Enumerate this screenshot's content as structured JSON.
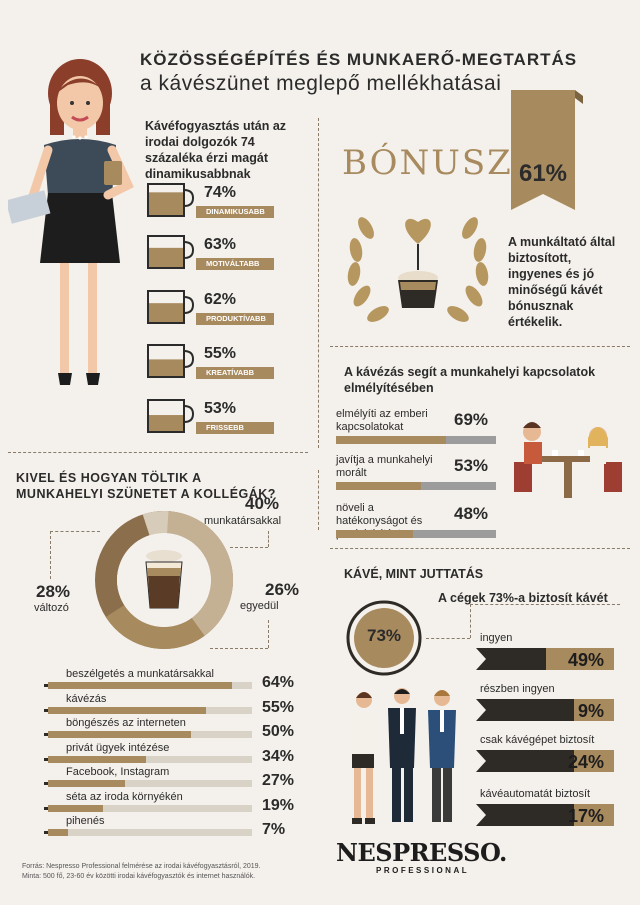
{
  "header": {
    "title": "KÖZÖSSÉGÉPÍTÉS ÉS MUNKAERŐ-MEGTARTÁS",
    "subtitle": "a kávészünet meglepő mellékhatásai"
  },
  "dynamic_section": {
    "heading": "Kávéfogyasztás után az irodai dolgozók 74 százaléka érzi magát dinamikusabbnak",
    "items": [
      {
        "value": "74%",
        "label": "DINAMIKUSABB",
        "fill": 0.74
      },
      {
        "value": "63%",
        "label": "MOTIVÁLTABB",
        "fill": 0.63
      },
      {
        "value": "62%",
        "label": "PRODUKTÍVABB",
        "fill": 0.62
      },
      {
        "value": "55%",
        "label": "KREATÍVABB",
        "fill": 0.55
      },
      {
        "value": "53%",
        "label": "FRISSEBB",
        "fill": 0.53
      }
    ]
  },
  "bonus": {
    "word": "BÓNUSZ",
    "ribbon_value": "61%",
    "text": "A munkáltató által biztosított, ingyenes és jó minőségű kávét bónusznak értékelik."
  },
  "relations": {
    "heading": "A kávézás segít a munkahelyi kapcsolatok elmélyítésében",
    "items": [
      {
        "label": "elmélyíti az emberi kapcsolatokat",
        "value": "69%",
        "fill": 0.69
      },
      {
        "label": "javítja a munkahelyi morált",
        "value": "53%",
        "fill": 0.53
      },
      {
        "label": "növeli a hatékonyságot és produktivitást",
        "value": "48%",
        "fill": 0.48
      }
    ]
  },
  "break_section": {
    "heading": "KIVEL  ÉS HOGYAN TÖLTIK A MUNKAHELYI SZÜNETET A KOLLÉGÁK?",
    "donut": [
      {
        "value": "40%",
        "label": "munkatársakkal"
      },
      {
        "value": "26%",
        "label": "egyedül"
      },
      {
        "value": "28%",
        "label": "változó"
      }
    ],
    "activities": [
      {
        "label": "beszélgetés a munkatársakkal",
        "value": "64%",
        "fill": 0.64
      },
      {
        "label": "kávézás",
        "value": "55%",
        "fill": 0.55
      },
      {
        "label": "böngészés az interneten",
        "value": "50%",
        "fill": 0.5
      },
      {
        "label": "privát ügyek intézése",
        "value": "34%",
        "fill": 0.34
      },
      {
        "label": "Facebook, Instagram",
        "value": "27%",
        "fill": 0.27
      },
      {
        "label": "séta az iroda környékén",
        "value": "19%",
        "fill": 0.19
      },
      {
        "label": "pihenés",
        "value": "7%",
        "fill": 0.07
      }
    ]
  },
  "benefit": {
    "heading": "KÁVÉ, MINT JUTTATÁS",
    "subheading": "A cégek 73%-a  biztosít kávét",
    "circle_value": "73%",
    "items": [
      {
        "label": "ingyen",
        "value": "49%",
        "fill": 0.49
      },
      {
        "label": "részben ingyen",
        "value": "9%",
        "fill": 0.09
      },
      {
        "label": "csak kávégépet biztosít",
        "value": "24%",
        "fill": 0.24
      },
      {
        "label": "kávéautomatát biztosít",
        "value": "17%",
        "fill": 0.17
      }
    ]
  },
  "footer": {
    "source1": "Forrás: Nespresso Professional felmérése az irodai kávéfogyasztásról, 2019.",
    "source2": "Minta: 500 fő, 23-60 év közötti irodai kávéfogyasztók és internet használók.",
    "logo": "NESPRESSO.",
    "logo_sub": "PROFESSIONAL"
  },
  "colors": {
    "gold": "#a88a5f",
    "dark": "#2e2a26",
    "grey": "#9c9c9c",
    "coffee": "#5a3b26",
    "bg": "#f4f1ec"
  }
}
